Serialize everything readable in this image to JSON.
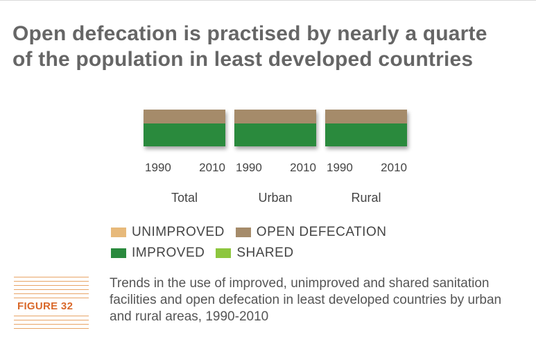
{
  "title_line1": "Open defecation is practised by nearly a quarte",
  "title_line2": "of the population in least developed countries",
  "chart_data": {
    "type": "bar",
    "orientation": "stacked-100",
    "groups": [
      {
        "label": "Total",
        "years": [
          "1990",
          "2010"
        ]
      },
      {
        "label": "Urban",
        "years": [
          "1990",
          "2010"
        ]
      },
      {
        "label": "Rural",
        "years": [
          "1990",
          "2010"
        ]
      }
    ],
    "series": [
      {
        "name": "IMPROVED",
        "color": "#2a8a3e"
      },
      {
        "name": "SHARED",
        "color": "#8dc63f"
      },
      {
        "name": "UNIMPROVED",
        "color": "#e7b97a"
      },
      {
        "name": "OPEN DEFECATION",
        "color": "#a58b6a"
      }
    ],
    "ylim": [
      0,
      100
    ]
  },
  "legend": [
    {
      "label": "UNIMPROVED",
      "color": "#e7b97a"
    },
    {
      "label": "OPEN DEFECATION",
      "color": "#a58b6a"
    },
    {
      "label": "IMPROVED",
      "color": "#2a8a3e"
    },
    {
      "label": "SHARED",
      "color": "#8dc63f"
    }
  ],
  "figure_label": "FIGURE 32",
  "caption": "Trends in the use of improved, unimproved and shared sanitation facilities and open defecation in least developed countries by urban and rural areas, 1990-2010"
}
